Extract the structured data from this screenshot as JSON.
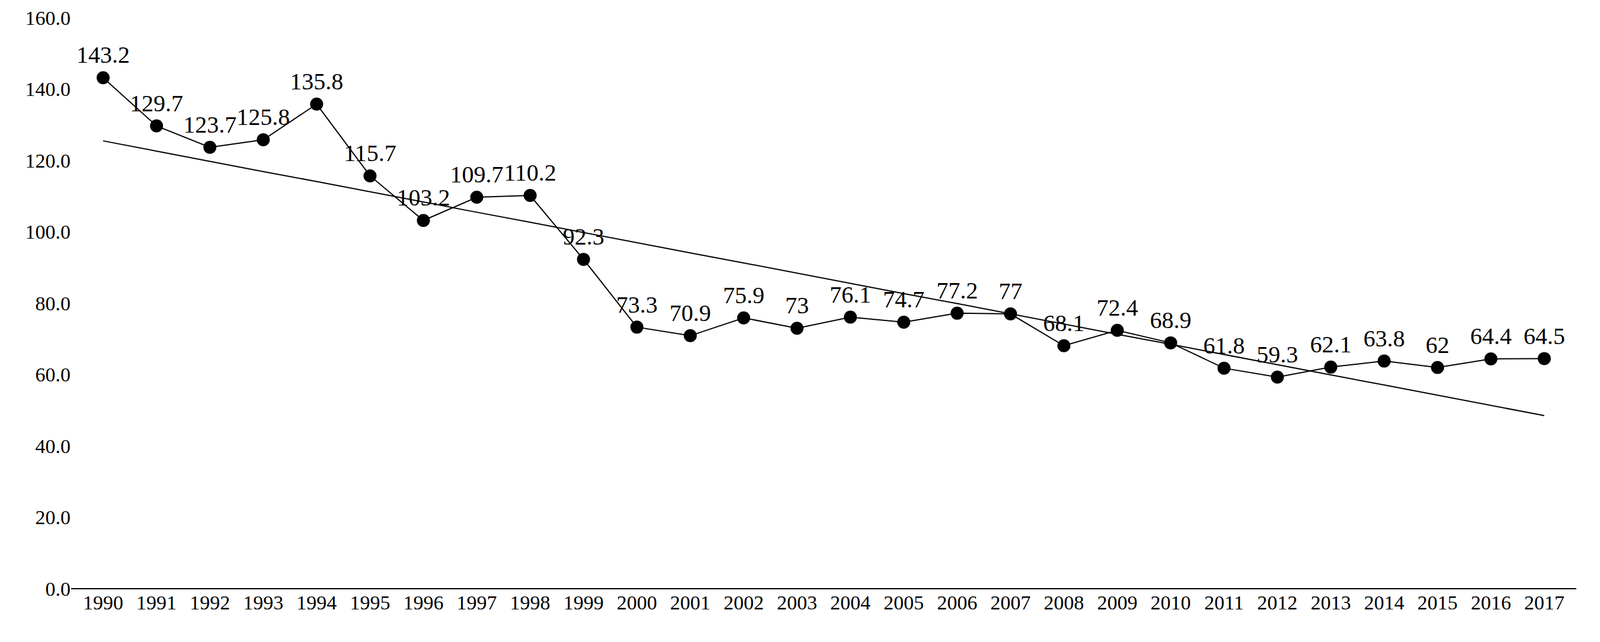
{
  "chart_data": {
    "type": "line",
    "categories": [
      "1990",
      "1991",
      "1992",
      "1993",
      "1994",
      "1995",
      "1996",
      "1997",
      "1998",
      "1999",
      "2000",
      "2001",
      "2002",
      "2003",
      "2004",
      "2005",
      "2006",
      "2007",
      "2008",
      "2009",
      "2010",
      "2011",
      "2012",
      "2013",
      "2014",
      "2015",
      "2016",
      "2017"
    ],
    "series": [
      {
        "color": "#000000",
        "marker": "circle",
        "line_style": "solid",
        "data_labels": true,
        "values": [
          143.2,
          129.7,
          123.7,
          125.8,
          135.8,
          115.7,
          103.2,
          109.7,
          110.2,
          92.3,
          73.3,
          70.9,
          75.9,
          73,
          76.1,
          74.7,
          77.2,
          77,
          68.1,
          72.4,
          68.9,
          61.8,
          59.3,
          62.1,
          63.8,
          62,
          64.4,
          64.5
        ]
      },
      {
        "color": "#000000",
        "marker": "none",
        "line_style": "solid",
        "data_labels": false,
        "values": [
          125.5,
          122.6,
          119.8,
          116.9,
          114.1,
          111.2,
          108.4,
          105.5,
          102.7,
          99.8,
          97.0,
          94.1,
          91.3,
          88.4,
          85.6,
          82.7,
          79.9,
          77.0,
          74.2,
          71.3,
          68.5,
          65.6,
          62.8,
          59.9,
          57.1,
          54.2,
          51.4,
          48.5
        ]
      }
    ],
    "ylim": [
      0,
      160
    ],
    "yticks": [
      {
        "value": 0,
        "label": "0.0"
      },
      {
        "value": 20,
        "label": "20.0"
      },
      {
        "value": 40,
        "label": "40.0"
      },
      {
        "value": 60,
        "label": "60.0"
      },
      {
        "value": 80,
        "label": "80.0"
      },
      {
        "value": 100,
        "label": "100.0"
      },
      {
        "value": 120,
        "label": "120.0"
      },
      {
        "value": 140,
        "label": "140.0"
      },
      {
        "value": 160,
        "label": "160.0"
      }
    ],
    "grid": false,
    "legend": "none"
  }
}
